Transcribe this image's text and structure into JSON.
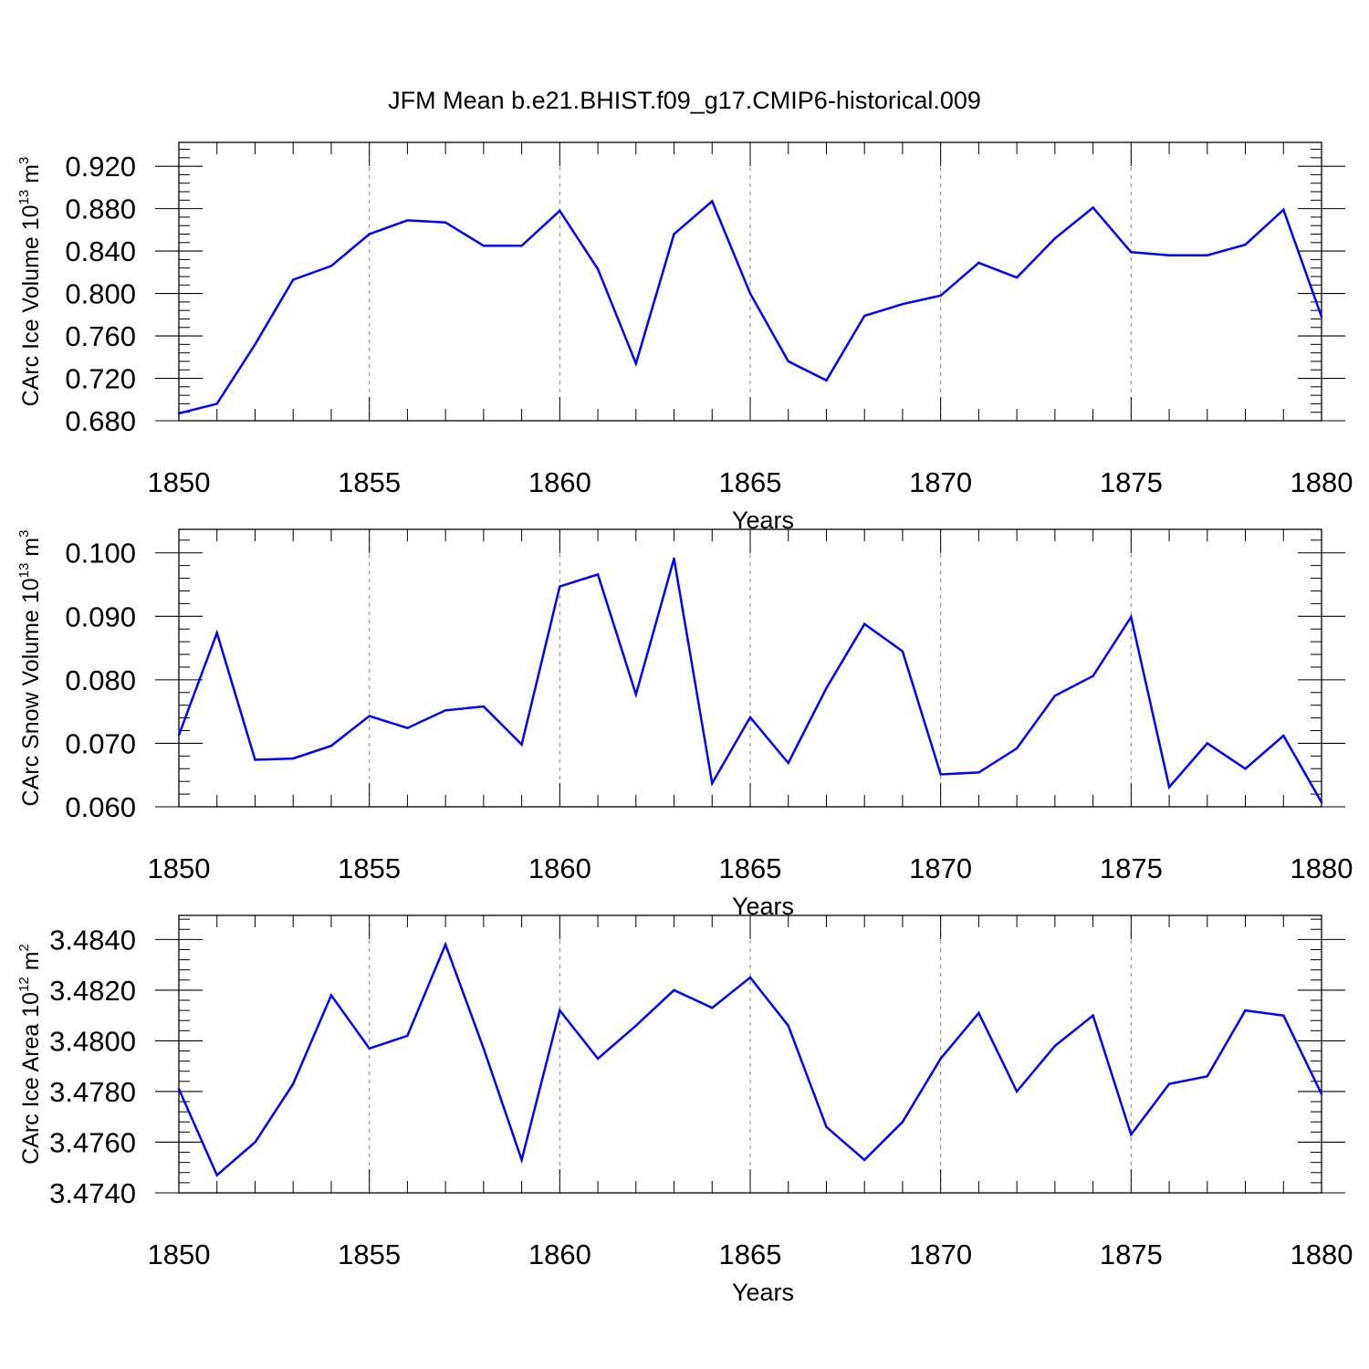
{
  "title": "JFM Mean b.e21.BHIST.f09_g17.CMIP6-historical.009",
  "colors": {
    "series": "#0000ff",
    "axis": "#000000",
    "grid": "#888888"
  },
  "chart_data": [
    {
      "type": "line",
      "xlabel": "Years",
      "ylabel": {
        "main": "CArc Ice Volume 10",
        "exp": "13",
        "rest": " m",
        "unit_exp": "3"
      },
      "xlim": [
        1850,
        1880
      ],
      "ylim": [
        0.68,
        0.9425
      ],
      "x_ticks": [
        1850,
        1855,
        1860,
        1865,
        1870,
        1875,
        1880
      ],
      "x_tick_labels": [
        "1850",
        "1855",
        "1860",
        "1865",
        "1870",
        "1875",
        "1880"
      ],
      "y_ticks": [
        0.68,
        0.72,
        0.76,
        0.8,
        0.84,
        0.88,
        0.92
      ],
      "y_tick_labels": [
        "0.680",
        "0.720",
        "0.760",
        "0.800",
        "0.840",
        "0.880",
        "0.920"
      ],
      "y_minor_step": 0.008,
      "grid": "vertical-dashed",
      "x": [
        1850,
        1851,
        1852,
        1853,
        1854,
        1855,
        1856,
        1857,
        1858,
        1859,
        1860,
        1861,
        1862,
        1863,
        1864,
        1865,
        1866,
        1867,
        1868,
        1869,
        1870,
        1871,
        1872,
        1873,
        1874,
        1875,
        1876,
        1877,
        1878,
        1879,
        1880
      ],
      "values": [
        0.687,
        0.696,
        0.752,
        0.813,
        0.826,
        0.856,
        0.869,
        0.867,
        0.845,
        0.845,
        0.878,
        0.823,
        0.734,
        0.856,
        0.887,
        0.8,
        0.736,
        0.718,
        0.779,
        0.79,
        0.798,
        0.829,
        0.815,
        0.852,
        0.881,
        0.839,
        0.836,
        0.836,
        0.846,
        0.879,
        0.778
      ]
    },
    {
      "type": "line",
      "xlabel": "Years",
      "ylabel": {
        "main": "CArc Snow Volume 10",
        "exp": "13",
        "rest": " m",
        "unit_exp": "3"
      },
      "xlim": [
        1850,
        1880
      ],
      "ylim": [
        0.06,
        0.1037
      ],
      "x_ticks": [
        1850,
        1855,
        1860,
        1865,
        1870,
        1875,
        1880
      ],
      "x_tick_labels": [
        "1850",
        "1855",
        "1860",
        "1865",
        "1870",
        "1875",
        "1880"
      ],
      "y_ticks": [
        0.06,
        0.07,
        0.08,
        0.09,
        0.1
      ],
      "y_tick_labels": [
        "0.060",
        "0.070",
        "0.080",
        "0.090",
        "0.100"
      ],
      "y_minor_step": 0.002,
      "grid": "vertical-dashed",
      "x": [
        1850,
        1851,
        1852,
        1853,
        1854,
        1855,
        1856,
        1857,
        1858,
        1859,
        1860,
        1861,
        1862,
        1863,
        1864,
        1865,
        1866,
        1867,
        1868,
        1869,
        1870,
        1871,
        1872,
        1873,
        1874,
        1875,
        1876,
        1877,
        1878,
        1879,
        1880
      ],
      "values": [
        0.0713,
        0.0874,
        0.0674,
        0.0676,
        0.0696,
        0.0743,
        0.0724,
        0.0752,
        0.0758,
        0.0698,
        0.0947,
        0.0966,
        0.0777,
        0.0991,
        0.0637,
        0.0741,
        0.0669,
        0.0787,
        0.0888,
        0.0845,
        0.0651,
        0.0654,
        0.0692,
        0.0775,
        0.0806,
        0.0899,
        0.0631,
        0.07,
        0.066,
        0.0712,
        0.0607
      ]
    },
    {
      "type": "line",
      "xlabel": "Years",
      "ylabel": {
        "main": "CArc Ice Area 10",
        "exp": "12",
        "rest": " m",
        "unit_exp": "2"
      },
      "xlim": [
        1850,
        1880
      ],
      "ylim": [
        3.474,
        3.48495
      ],
      "x_ticks": [
        1850,
        1855,
        1860,
        1865,
        1870,
        1875,
        1880
      ],
      "x_tick_labels": [
        "1850",
        "1855",
        "1860",
        "1865",
        "1870",
        "1875",
        "1880"
      ],
      "y_ticks": [
        3.474,
        3.476,
        3.478,
        3.48,
        3.482,
        3.484
      ],
      "y_tick_labels": [
        "3.4740",
        "3.4760",
        "3.4780",
        "3.4800",
        "3.4820",
        "3.4840"
      ],
      "y_minor_step": 0.0004,
      "grid": "vertical-dashed",
      "x": [
        1850,
        1851,
        1852,
        1853,
        1854,
        1855,
        1856,
        1857,
        1858,
        1859,
        1860,
        1861,
        1862,
        1863,
        1864,
        1865,
        1866,
        1867,
        1868,
        1869,
        1870,
        1871,
        1872,
        1873,
        1874,
        1875,
        1876,
        1877,
        1878,
        1879,
        1880
      ],
      "values": [
        3.4781,
        3.4747,
        3.476,
        3.4783,
        3.4818,
        3.4797,
        3.4802,
        3.4838,
        3.4797,
        3.4753,
        3.4812,
        3.4793,
        3.4806,
        3.482,
        3.4813,
        3.4825,
        3.4806,
        3.4766,
        3.4753,
        3.4768,
        3.4793,
        3.4811,
        3.478,
        3.4798,
        3.481,
        3.4763,
        3.4783,
        3.4786,
        3.4812,
        3.481,
        3.4779
      ]
    }
  ]
}
